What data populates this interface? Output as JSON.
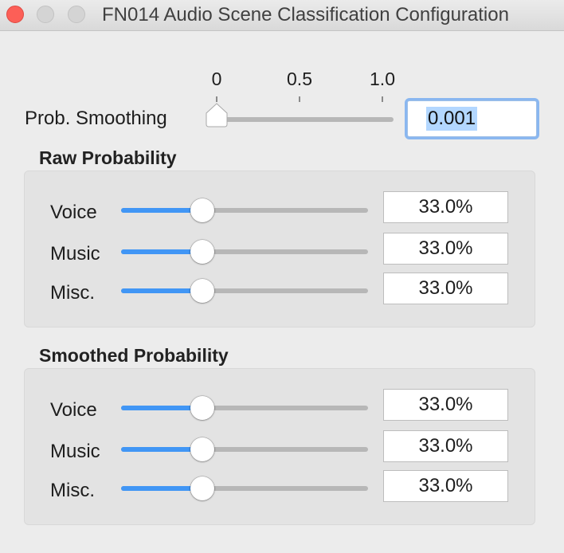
{
  "window": {
    "title": "FN014 Audio Scene Classification Configuration"
  },
  "smoothing": {
    "label": "Prob. Smoothing",
    "scale_labels": [
      "0",
      "0.5",
      "1.0"
    ],
    "value": 0.001,
    "value_text": "0.001"
  },
  "raw": {
    "heading": "Raw Probability",
    "rows": [
      {
        "label": "Voice",
        "value": 0.33,
        "value_text": "33.0%"
      },
      {
        "label": "Music",
        "value": 0.33,
        "value_text": "33.0%"
      },
      {
        "label": "Misc.",
        "value": 0.33,
        "value_text": "33.0%"
      }
    ]
  },
  "smoothed": {
    "heading": "Smoothed Probability",
    "rows": [
      {
        "label": "Voice",
        "value": 0.33,
        "value_text": "33.0%"
      },
      {
        "label": "Music",
        "value": 0.33,
        "value_text": "33.0%"
      },
      {
        "label": "Misc.",
        "value": 0.33,
        "value_text": "33.0%"
      }
    ]
  },
  "colors": {
    "accent": "#4196f5",
    "close": "#fc5f57",
    "focus_ring": "#8ab7f0"
  }
}
